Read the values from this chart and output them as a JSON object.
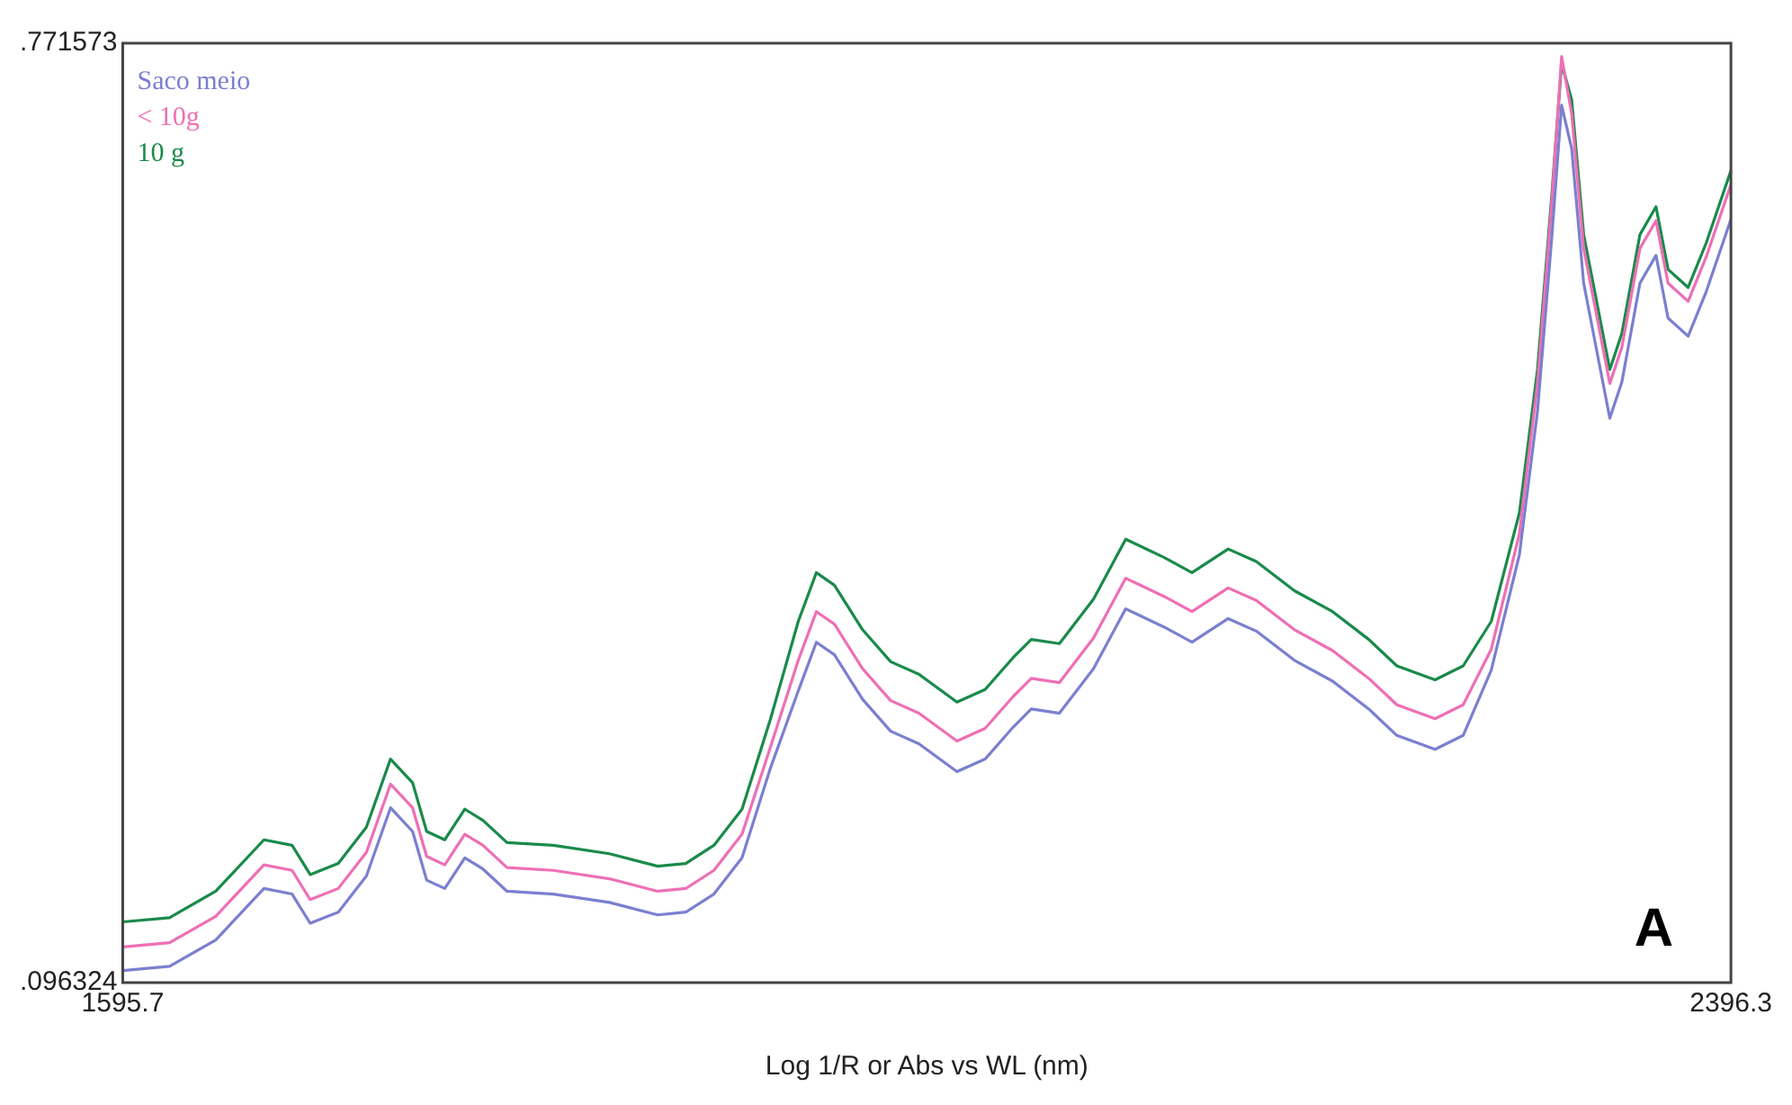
{
  "chart_data": {
    "type": "line",
    "xlabel": "Log 1/R or Abs vs WL (nm)",
    "x": [
      1595.7,
      1619,
      1642,
      1666,
      1680,
      1689,
      1703,
      1717,
      1729,
      1740,
      1747,
      1756,
      1766,
      1775,
      1787,
      1810,
      1838,
      1862,
      1876,
      1890,
      1904,
      1918,
      1932,
      1941,
      1950,
      1964,
      1978,
      1992,
      2011,
      2025,
      2039,
      2048,
      2062,
      2079,
      2095,
      2114,
      2128,
      2146,
      2160,
      2179,
      2198,
      2216,
      2230,
      2249,
      2263,
      2277,
      2291,
      2300,
      2307,
      2312,
      2317,
      2323,
      2336,
      2342,
      2351,
      2359,
      2365,
      2375,
      2384,
      2396.3
    ],
    "series": [
      {
        "name": "Saco meio",
        "color": "#7b7fd0",
        "values": [
          0.105,
          0.108,
          0.127,
          0.164,
          0.16,
          0.139,
          0.147,
          0.173,
          0.222,
          0.205,
          0.17,
          0.164,
          0.186,
          0.178,
          0.162,
          0.16,
          0.154,
          0.145,
          0.147,
          0.16,
          0.186,
          0.25,
          0.306,
          0.341,
          0.332,
          0.3,
          0.277,
          0.268,
          0.248,
          0.257,
          0.28,
          0.293,
          0.29,
          0.322,
          0.365,
          0.352,
          0.341,
          0.358,
          0.349,
          0.328,
          0.313,
          0.293,
          0.274,
          0.264,
          0.274,
          0.321,
          0.404,
          0.507,
          0.63,
          0.727,
          0.696,
          0.599,
          0.502,
          0.528,
          0.599,
          0.619,
          0.574,
          0.561,
          0.593,
          0.645
        ]
      },
      {
        "name": "< 10g",
        "color": "#ee6fb5",
        "values": [
          0.122,
          0.125,
          0.144,
          0.181,
          0.177,
          0.156,
          0.164,
          0.19,
          0.239,
          0.222,
          0.187,
          0.181,
          0.203,
          0.195,
          0.179,
          0.177,
          0.171,
          0.162,
          0.164,
          0.177,
          0.203,
          0.265,
          0.328,
          0.363,
          0.354,
          0.322,
          0.299,
          0.29,
          0.27,
          0.279,
          0.302,
          0.315,
          0.312,
          0.344,
          0.387,
          0.374,
          0.363,
          0.38,
          0.371,
          0.35,
          0.335,
          0.315,
          0.296,
          0.286,
          0.296,
          0.336,
          0.419,
          0.527,
          0.655,
          0.762,
          0.721,
          0.624,
          0.527,
          0.553,
          0.624,
          0.644,
          0.599,
          0.586,
          0.618,
          0.67
        ]
      },
      {
        "name": "10 g",
        "color": "#1a8a4a",
        "values": [
          0.14,
          0.143,
          0.162,
          0.199,
          0.195,
          0.174,
          0.182,
          0.208,
          0.257,
          0.24,
          0.205,
          0.199,
          0.221,
          0.213,
          0.197,
          0.195,
          0.189,
          0.18,
          0.182,
          0.195,
          0.221,
          0.285,
          0.356,
          0.391,
          0.382,
          0.35,
          0.327,
          0.318,
          0.298,
          0.307,
          0.33,
          0.343,
          0.34,
          0.372,
          0.415,
          0.402,
          0.391,
          0.408,
          0.399,
          0.378,
          0.363,
          0.343,
          0.324,
          0.314,
          0.324,
          0.356,
          0.434,
          0.537,
          0.66,
          0.757,
          0.731,
          0.634,
          0.537,
          0.563,
          0.634,
          0.654,
          0.609,
          0.596,
          0.628,
          0.68
        ]
      }
    ],
    "xlim": [
      1595.7,
      2396.3
    ],
    "xticks": [
      1595.7,
      2396.3
    ],
    "ylim": [
      0.096324,
      0.771573
    ],
    "yticks": [
      {
        "value": 0.096324,
        "label": ".096324"
      },
      {
        "value": 0.771573,
        "label": ".771573"
      }
    ],
    "legend": "top left",
    "marker": "none",
    "line_style": "solid",
    "annotations": [
      "A"
    ]
  }
}
